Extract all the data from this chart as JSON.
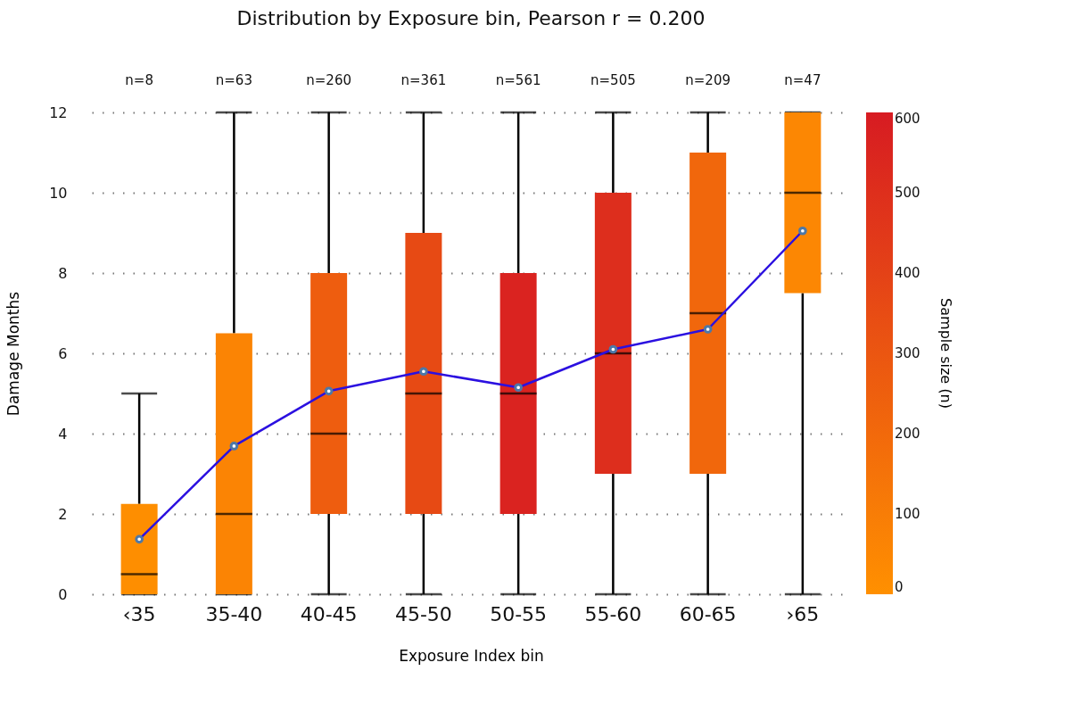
{
  "chart_data": {
    "type": "box",
    "title": "Distribution by Exposure bin, Pearson r = 0.200",
    "xlabel": "Exposure Index bin",
    "ylabel": "Damage Months",
    "clabel": "Sample size (n)",
    "categories": [
      "‹35",
      "35-40",
      "40-45",
      "45-50",
      "50-55",
      "55-60",
      "60-65",
      "›65"
    ],
    "boxes": [
      {
        "low": 0,
        "q1": 0,
        "median": 0.5,
        "q3": 2.25,
        "high": 5
      },
      {
        "low": 0,
        "q1": 0,
        "median": 2,
        "q3": 6.5,
        "high": 12
      },
      {
        "low": 0,
        "q1": 2,
        "median": 4,
        "q3": 8,
        "high": 12
      },
      {
        "low": 0,
        "q1": 2,
        "median": 5,
        "q3": 9,
        "high": 12
      },
      {
        "low": 0,
        "q1": 2,
        "median": 5,
        "q3": 8,
        "high": 12
      },
      {
        "low": 0,
        "q1": 3,
        "median": 6,
        "q3": 10,
        "high": 12
      },
      {
        "low": 0,
        "q1": 3,
        "median": 7,
        "q3": 11,
        "high": 12
      },
      {
        "low": 0,
        "q1": 7.5,
        "median": 10,
        "q3": 12,
        "high": 12
      }
    ],
    "cvalues": [
      8,
      63,
      260,
      361,
      561,
      505,
      209,
      47
    ],
    "colors": [
      "#fe8e00",
      "#fb8404",
      "#ee5d0f",
      "#e84a14",
      "#da2320",
      "#de2e1d",
      "#f1670c",
      "#fc8703"
    ],
    "clim": [
      0,
      600
    ],
    "cticks": [
      0,
      100,
      200,
      300,
      400,
      500,
      600
    ],
    "series": [
      {
        "type": "line",
        "color": "#2b10e0",
        "marker": "circle",
        "values": [
          1.37,
          3.69,
          5.06,
          5.55,
          5.15,
          6.1,
          6.6,
          9.05
        ]
      }
    ],
    "annotations": [
      "n=8",
      "n=63",
      "n=260",
      "n=361",
      "n=561",
      "n=505",
      "n=209",
      "n=47"
    ],
    "ylim": [
      0,
      12
    ],
    "yticks": [
      0,
      2,
      4,
      6,
      8,
      10,
      12
    ],
    "grid": "y"
  }
}
